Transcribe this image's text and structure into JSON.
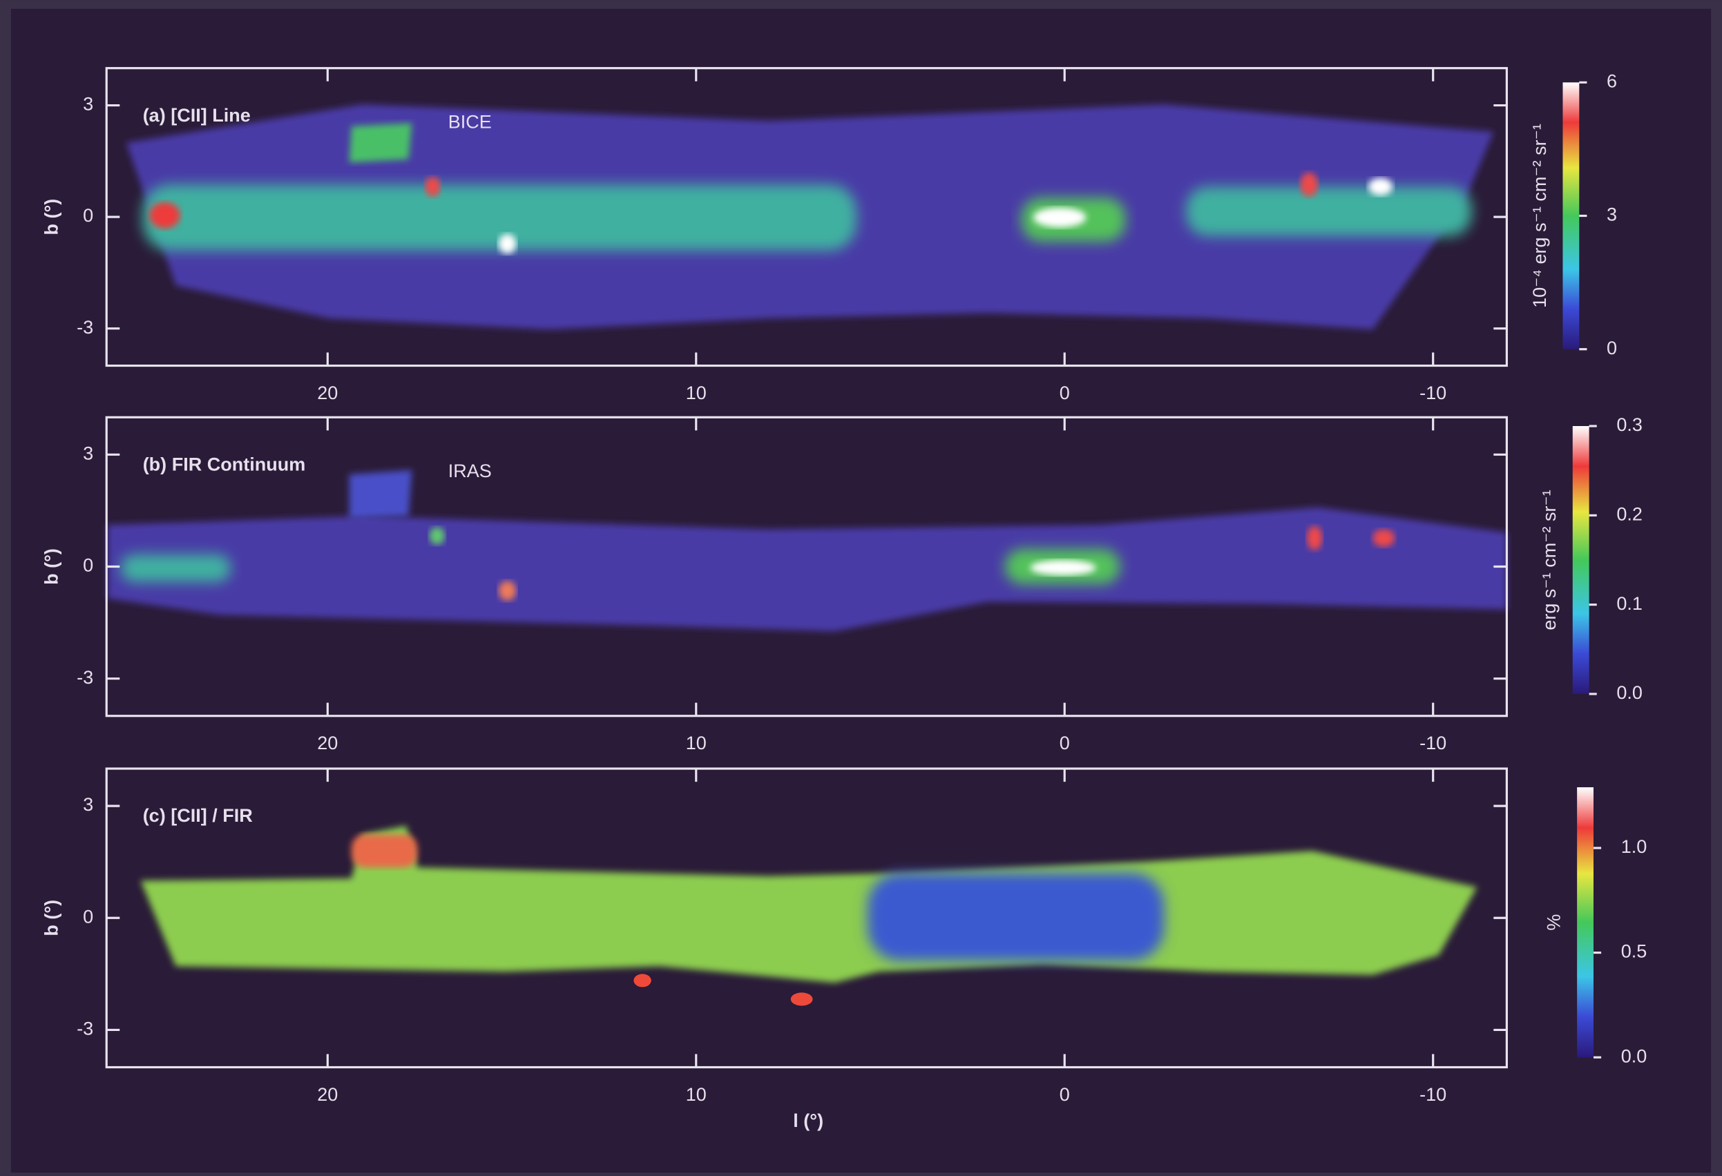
{
  "chart_data": [
    {
      "type": "heatmap",
      "title": "(a) [CII] Line",
      "annotation": "BICE",
      "ylabel": "b (°)",
      "xlim": [
        26,
        -12
      ],
      "xticks": [
        20,
        10,
        0,
        -10
      ],
      "ylim": [
        -4,
        4
      ],
      "yticks": [
        3,
        0,
        -3
      ],
      "colorbar_label": "10⁻⁴ erg s⁻¹ cm⁻² sr⁻¹",
      "clim": [
        0,
        6
      ],
      "cticks": [
        0,
        3,
        6
      ]
    },
    {
      "type": "heatmap",
      "title": "(b) FIR Continuum",
      "annotation": "IRAS",
      "ylabel": "b (°)",
      "xlim": [
        26,
        -12
      ],
      "xticks": [
        20,
        10,
        0,
        -10
      ],
      "ylim": [
        -4,
        4
      ],
      "yticks": [
        3,
        0,
        -3
      ],
      "colorbar_label": "erg s⁻¹ cm⁻² sr⁻¹",
      "clim": [
        0,
        0.3
      ],
      "cticks": [
        {
          "value": 0,
          "label": "0.0"
        },
        0.1,
        0.2,
        0.3
      ]
    },
    {
      "type": "heatmap",
      "title": "(c) [CII] / FIR",
      "ylabel": "b (°)",
      "xlabel": "l (°)",
      "xlim": [
        26,
        -12
      ],
      "xticks": [
        20,
        10,
        0,
        -10
      ],
      "ylim": [
        -4,
        4
      ],
      "yticks": [
        3,
        0,
        -3
      ],
      "colorbar_label": "%",
      "clim": [
        0,
        1.29
      ],
      "cticks": [
        {
          "value": 0,
          "label": "0.0"
        },
        0.5,
        {
          "value": 1,
          "label": "1.0"
        }
      ]
    }
  ]
}
